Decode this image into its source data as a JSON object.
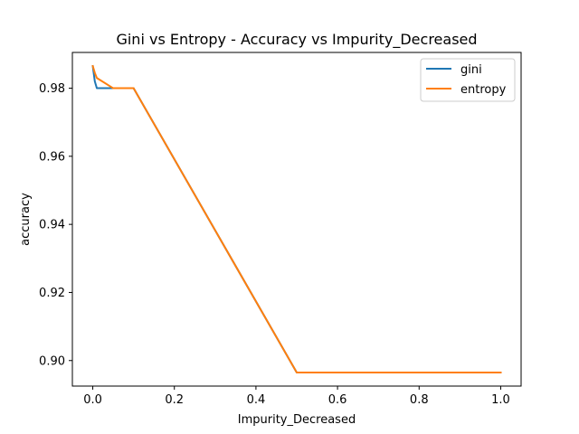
{
  "chart_data": {
    "type": "line",
    "title": "Gini vs Entropy - Accuracy vs Impurity_Decreased",
    "xlabel": "Impurity_Decreased",
    "ylabel": "accuracy",
    "xlim": [
      -0.05,
      1.05
    ],
    "ylim": [
      0.8925,
      0.9905
    ],
    "xticks": [
      0.0,
      0.2,
      0.4,
      0.6,
      0.8,
      1.0
    ],
    "xtick_labels": [
      "0.0",
      "0.2",
      "0.4",
      "0.6",
      "0.8",
      "1.0"
    ],
    "yticks": [
      0.9,
      0.92,
      0.94,
      0.96,
      0.98
    ],
    "ytick_labels": [
      "0.90",
      "0.92",
      "0.94",
      "0.96",
      "0.98"
    ],
    "grid": false,
    "legend_position": "top-right",
    "series": [
      {
        "name": "gini",
        "color": "#1f77b4",
        "x": [
          0.0,
          0.005,
          0.01,
          0.05,
          0.1,
          0.5,
          1.0
        ],
        "y": [
          0.9865,
          0.982,
          0.98,
          0.98,
          0.98,
          0.8965,
          0.8965
        ]
      },
      {
        "name": "entropy",
        "color": "#ff7f0e",
        "x": [
          0.0,
          0.005,
          0.01,
          0.05,
          0.1,
          0.5,
          1.0
        ],
        "y": [
          0.9865,
          0.9845,
          0.983,
          0.98,
          0.98,
          0.8965,
          0.8965
        ]
      }
    ]
  }
}
